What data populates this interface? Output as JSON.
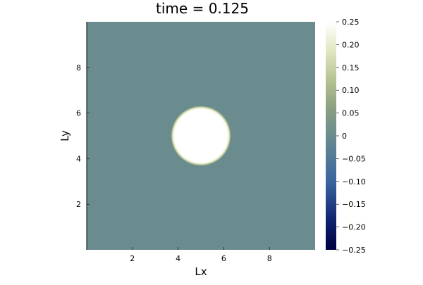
{
  "chart_data": {
    "type": "heatmap",
    "title": "time = 0.125",
    "xlabel": "Lx",
    "ylabel": "Ly",
    "xlim": [
      0,
      10
    ],
    "ylim": [
      0,
      10
    ],
    "x_ticks": [
      2,
      4,
      6,
      8
    ],
    "y_ticks": [
      2,
      4,
      6,
      8
    ],
    "field": {
      "background_value": 0,
      "disk_center": [
        5,
        5
      ],
      "disk_radius": 1.25,
      "disk_value": 0.25,
      "edge_width": 0.08
    },
    "colorbar": {
      "range": [
        -0.25,
        0.25
      ],
      "ticks": [
        -0.25,
        -0.2,
        -0.15,
        -0.1,
        -0.05,
        0,
        0.05,
        0.1,
        0.15,
        0.2,
        0.25
      ],
      "tick_labels": [
        "−0.25",
        "−0.20",
        "−0.15",
        "−0.10",
        "−0.05",
        "0",
        "0.05",
        "0.10",
        "0.15",
        "0.20",
        "0.25"
      ],
      "colormap": [
        [
          0.0,
          "#000040"
        ],
        [
          0.12,
          "#0d1f6e"
        ],
        [
          0.3,
          "#3a66a0"
        ],
        [
          0.5,
          "#6b8c8f"
        ],
        [
          0.62,
          "#8a9e80"
        ],
        [
          0.75,
          "#b8c493"
        ],
        [
          0.88,
          "#e4e8c5"
        ],
        [
          1.0,
          "#ffffff"
        ]
      ]
    },
    "grid": false,
    "legend": "none"
  }
}
